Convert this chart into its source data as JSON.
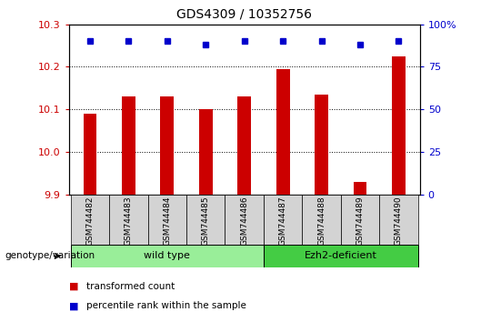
{
  "title": "GDS4309 / 10352756",
  "samples": [
    "GSM744482",
    "GSM744483",
    "GSM744484",
    "GSM744485",
    "GSM744486",
    "GSM744487",
    "GSM744488",
    "GSM744489",
    "GSM744490"
  ],
  "red_values": [
    10.09,
    10.13,
    10.13,
    10.1,
    10.13,
    10.195,
    10.135,
    9.93,
    10.225
  ],
  "blue_values": [
    90,
    90,
    90,
    88,
    90,
    90,
    90,
    88,
    90
  ],
  "ylim_left": [
    9.9,
    10.3
  ],
  "ylim_right": [
    0,
    100
  ],
  "yticks_left": [
    9.9,
    10.0,
    10.1,
    10.2,
    10.3
  ],
  "yticks_right": [
    0,
    25,
    50,
    75,
    100
  ],
  "grid_yticks": [
    10.0,
    10.1,
    10.2
  ],
  "groups": [
    {
      "label": "wild type",
      "start": 0,
      "end": 4,
      "color": "#99EE99"
    },
    {
      "label": "Ezh2-deficient",
      "start": 5,
      "end": 8,
      "color": "#44CC44"
    }
  ],
  "bar_color": "#CC0000",
  "dot_color": "#0000CC",
  "background_color": "#FFFFFF",
  "tick_color_left": "#CC0000",
  "tick_color_right": "#0000CC",
  "sample_box_color": "#D3D3D3",
  "legend_red_label": "transformed count",
  "legend_blue_label": "percentile rank within the sample",
  "group_label": "genotype/variation"
}
